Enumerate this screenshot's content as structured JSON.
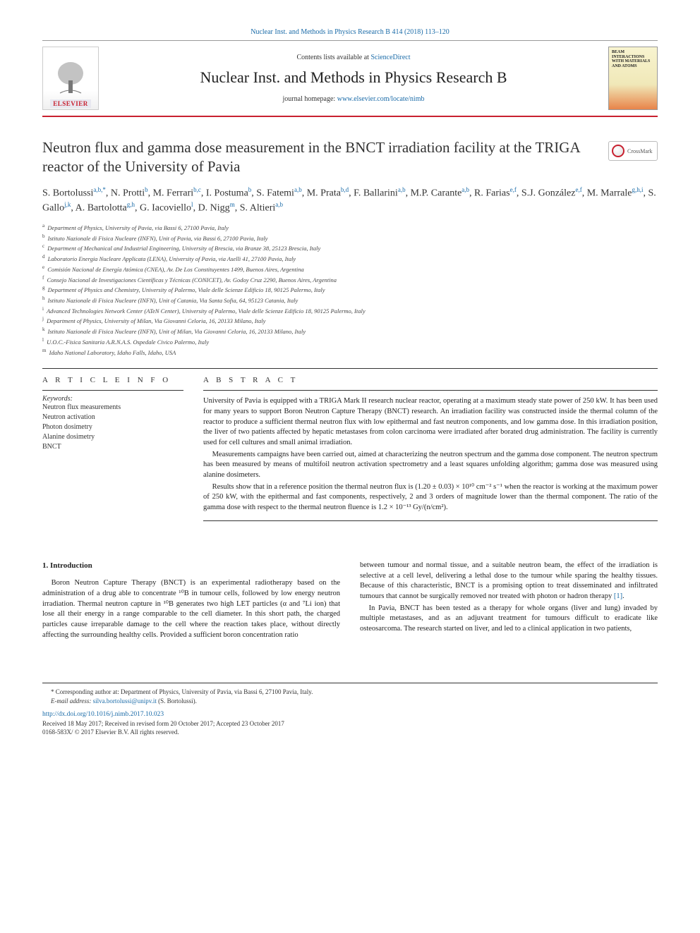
{
  "journal": {
    "citation_link": "Nuclear Inst. and Methods in Physics Research B 414 (2018) 113–120",
    "contents_prefix": "Contents lists available at ",
    "contents_link_text": "ScienceDirect",
    "title": "Nuclear Inst. and Methods in Physics Research B",
    "homepage_prefix": "journal homepage: ",
    "homepage_link": "www.elsevier.com/locate/nimb",
    "elsevier_label": "ELSEVIER",
    "cover_text": "BEAM INTERACTIONS WITH MATERIALS AND ATOMS"
  },
  "article": {
    "title": "Neutron flux and gamma dose measurement in the BNCT irradiation facility at the TRIGA reactor of the University of Pavia",
    "crossmark_label": "CrossMark"
  },
  "authors_html": "S. Bortolussi<sup>a,b,*</sup>, N. Protti<sup>b</sup>, M. Ferrari<sup>b,c</sup>, I. Postuma<sup>b</sup>, S. Fatemi<sup>a,b</sup>, M. Prata<sup>b,d</sup>, F. Ballarini<sup>a,b</sup>, M.P. Carante<sup>a,b</sup>, R. Farias<sup>e,f</sup>, S.J. González<sup>e,f</sup>, M. Marrale<sup>g,h,i</sup>, S. Gallo<sup>j,k</sup>, A. Bartolotta<sup>g,h</sup>, G. Iacoviello<sup>l</sup>, D. Nigg<sup>m</sup>, S. Altieri<sup>a,b</sup>",
  "affiliations": [
    {
      "key": "a",
      "text": "Department of Physics, University of Pavia, via Bassi 6, 27100 Pavia, Italy"
    },
    {
      "key": "b",
      "text": "Istituto Nazionale di Fisica Nucleare (INFN), Unit of Pavia, via Bassi 6, 27100 Pavia, Italy"
    },
    {
      "key": "c",
      "text": "Department of Mechanical and Industrial Engineering, University of Brescia, via Branze 38, 25123 Brescia, Italy"
    },
    {
      "key": "d",
      "text": "Laboratorio Energia Nucleare Applicata (LENA), University of Pavia, via Aselli 41, 27100 Pavia, Italy"
    },
    {
      "key": "e",
      "text": "Comisión Nacional de Energía Atómica (CNEA), Av. De Los Constituyentes 1499, Buenos Aires, Argentina"
    },
    {
      "key": "f",
      "text": "Consejo Nacional de Investigaciones Científicas y Técnicas (CONICET), Av. Godoy Cruz 2290, Buenos Aires, Argentina"
    },
    {
      "key": "g",
      "text": "Department of Physics and Chemistry, University of Palermo, Viale delle Scienze Edificio 18, 90125 Palermo, Italy"
    },
    {
      "key": "h",
      "text": "Istituto Nazionale di Fisica Nucleare (INFN), Unit of Catania, Via Santa Sofia, 64, 95123 Catania, Italy"
    },
    {
      "key": "i",
      "text": "Advanced Technologies Network Center (ATeN Center), University of Palermo, Viale delle Scienze Edificio 18, 90125 Palermo, Italy"
    },
    {
      "key": "j",
      "text": "Department of Physics, University of Milan, Via Giovanni Celoria, 16, 20133 Milano, Italy"
    },
    {
      "key": "k",
      "text": "Istituto Nazionale di Fisica Nucleare (INFN), Unit of Milan, Via Giovanni Celoria, 16, 20133 Milano, Italy"
    },
    {
      "key": "l",
      "text": "U.O.C.-Fisica Sanitaria A.R.N.A.S. Ospedale Civico Palermo, Italy"
    },
    {
      "key": "m",
      "text": "Idaho National Laboratory, Idaho Falls, Idaho, USA"
    }
  ],
  "article_info": {
    "heading": "A R T I C L E   I N F O",
    "keywords_label": "Keywords:",
    "keywords": [
      "Neutron flux measurements",
      "Neutron activation",
      "Photon dosimetry",
      "Alanine dosimetry",
      "BNCT"
    ]
  },
  "abstract": {
    "heading": "A B S T R A C T",
    "paragraphs": [
      "University of Pavia is equipped with a TRIGA Mark II research nuclear reactor, operating at a maximum steady state power of 250 kW. It has been used for many years to support Boron Neutron Capture Therapy (BNCT) research. An irradiation facility was constructed inside the thermal column of the reactor to produce a sufficient thermal neutron flux with low epithermal and fast neutron components, and low gamma dose. In this irradiation position, the liver of two patients affected by hepatic metastases from colon carcinoma were irradiated after borated drug administration. The facility is currently used for cell cultures and small animal irradiation.",
      "Measurements campaigns have been carried out, aimed at characterizing the neutron spectrum and the gamma dose component. The neutron spectrum has been measured by means of multifoil neutron activation spectrometry and a least squares unfolding algorithm; gamma dose was measured using alanine dosimeters.",
      "Results show that in a reference position the thermal neutron flux is (1.20 ± 0.03) × 10¹⁰ cm⁻² s⁻¹ when the reactor is working at the maximum power of 250 kW, with the epithermal and fast components, respectively, 2 and 3 orders of magnitude lower than the thermal component. The ratio of the gamma dose with respect to the thermal neutron fluence is 1.2 × 10⁻¹³ Gy/(n/cm²)."
    ]
  },
  "body": {
    "section_heading": "1. Introduction",
    "col1_p1": "Boron Neutron Capture Therapy (BNCT) is an experimental radiotherapy based on the administration of a drug able to concentrate ¹⁰B in tumour cells, followed by low energy neutron irradiation. Thermal neutron capture in ¹⁰B generates two high LET particles (α and ⁷Li ion) that lose all their energy in a range comparable to the cell diameter. In this short path, the charged particles cause irreparable damage to the cell where the reaction takes place, without directly affecting the surrounding healthy cells. Provided a sufficient boron concentration ratio",
    "col2_p1_pre": "between tumour and normal tissue, and a suitable neutron beam, the effect of the irradiation is selective at a cell level, delivering a lethal dose to the tumour while sparing the healthy tissues. Because of this characteristic, BNCT is a promising option to treat disseminated and infiltrated tumours that cannot be surgically removed nor treated with photon or hadron therapy ",
    "ref1": "[1]",
    "col2_p1_post": ".",
    "col2_p2": "In Pavia, BNCT has been tested as a therapy for whole organs (liver and lung) invaded by multiple metastases, and as an adjuvant treatment for tumours difficult to eradicate like osteosarcoma. The research started on liver, and led to a clinical application in two patients,"
  },
  "footer": {
    "corresponding_label": "* Corresponding author at: Department of Physics, University of Pavia, via Bassi 6, 27100 Pavia, Italy.",
    "email_label": "E-mail address: ",
    "email": "silva.bortolussi@unipv.it",
    "email_paren": " (S. Bortolussi).",
    "doi": "http://dx.doi.org/10.1016/j.nimb.2017.10.023",
    "dates": "Received 18 May 2017; Received in revised form 20 October 2017; Accepted 23 October 2017",
    "copyright": "0168-583X/ © 2017 Elsevier B.V. All rights reserved."
  },
  "colors": {
    "link": "#1a6ba8",
    "rule_red": "#c8202f",
    "text": "#222222"
  }
}
